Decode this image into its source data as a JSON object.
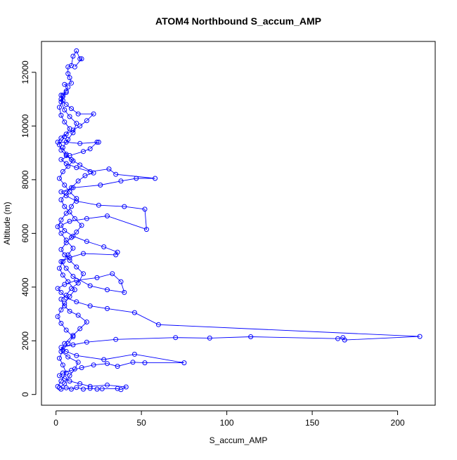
{
  "chart_data": {
    "type": "scatter",
    "title": "ATOM4 Northbound S_accum_AMP",
    "xlabel": "S_accum_AMP",
    "ylabel": "Altitude (m)",
    "xlim": [
      -8.5,
      222
    ],
    "ylim": [
      -400,
      13150
    ],
    "x_ticks": [
      0,
      50,
      100,
      150,
      200
    ],
    "y_ticks": [
      0,
      2000,
      4000,
      6000,
      8000,
      10000,
      12000
    ],
    "grid": false,
    "legend": "none",
    "series_color": "#0000ff",
    "series": [
      {
        "values": [
          [
            3,
            200
          ],
          [
            6,
            250
          ],
          [
            9,
            200
          ],
          [
            12,
            260
          ],
          [
            16,
            200
          ],
          [
            20,
            230
          ],
          [
            24,
            200
          ],
          [
            27,
            210
          ],
          [
            36,
            220
          ],
          [
            38,
            180
          ],
          [
            41,
            280
          ],
          [
            30,
            350
          ],
          [
            20,
            300
          ],
          [
            14,
            400
          ],
          [
            8,
            500
          ],
          [
            5,
            600
          ],
          [
            2,
            700
          ],
          [
            4,
            800
          ],
          [
            9,
            900
          ],
          [
            15,
            1000
          ],
          [
            22,
            1100
          ],
          [
            30,
            1150
          ],
          [
            36,
            1050
          ],
          [
            45,
            1200
          ],
          [
            52,
            1180
          ],
          [
            75,
            1180
          ],
          [
            46,
            1500
          ],
          [
            28,
            1300
          ],
          [
            12,
            1450
          ],
          [
            6,
            1600
          ],
          [
            3,
            1750
          ],
          [
            10,
            1850
          ],
          [
            18,
            1950
          ],
          [
            35,
            2050
          ],
          [
            70,
            2120
          ],
          [
            90,
            2100
          ],
          [
            114,
            2150
          ],
          [
            165,
            2080
          ],
          [
            168,
            2120
          ],
          [
            169,
            2030
          ],
          [
            213,
            2160
          ],
          [
            60,
            2600
          ],
          [
            46,
            3050
          ],
          [
            30,
            3200
          ],
          [
            20,
            3300
          ],
          [
            12,
            3450
          ],
          [
            6,
            3600
          ],
          [
            3,
            3800
          ],
          [
            1,
            3950
          ],
          [
            5,
            4100
          ],
          [
            12,
            4250
          ],
          [
            24,
            4350
          ],
          [
            33,
            4500
          ],
          [
            38,
            4200
          ],
          [
            40,
            3800
          ],
          [
            30,
            3900
          ],
          [
            20,
            4050
          ],
          [
            10,
            4400
          ],
          [
            6,
            4700
          ],
          [
            3,
            4950
          ],
          [
            8,
            5100
          ],
          [
            16,
            5250
          ],
          [
            35,
            5200
          ],
          [
            36,
            5300
          ],
          [
            28,
            5500
          ],
          [
            18,
            5700
          ],
          [
            10,
            5900
          ],
          [
            5,
            6100
          ],
          [
            3,
            6300
          ],
          [
            8,
            6450
          ],
          [
            18,
            6550
          ],
          [
            30,
            6650
          ],
          [
            53,
            6150
          ],
          [
            52,
            6900
          ],
          [
            40,
            7000
          ],
          [
            25,
            7050
          ],
          [
            12,
            7200
          ],
          [
            6,
            7400
          ],
          [
            3,
            7550
          ],
          [
            10,
            7700
          ],
          [
            26,
            7800
          ],
          [
            38,
            7950
          ],
          [
            47,
            8050
          ],
          [
            58,
            8050
          ],
          [
            35,
            8200
          ],
          [
            31,
            8400
          ],
          [
            20,
            8300
          ],
          [
            12,
            8450
          ],
          [
            6,
            8600
          ],
          [
            3,
            8750
          ],
          [
            8,
            8900
          ],
          [
            16,
            9050
          ],
          [
            20,
            9150
          ],
          [
            24,
            9400
          ],
          [
            25,
            9400
          ],
          [
            14,
            9350
          ],
          [
            6,
            9400
          ],
          [
            1,
            9400
          ],
          [
            3,
            9550
          ],
          [
            6,
            9700
          ],
          [
            10,
            9850
          ],
          [
            14,
            10000
          ],
          [
            18,
            10200
          ],
          [
            22,
            10450
          ],
          [
            13,
            10450
          ],
          [
            9,
            10650
          ],
          [
            6,
            10800
          ],
          [
            3,
            11000
          ],
          [
            4,
            11150
          ],
          [
            6,
            11300
          ],
          [
            7,
            11450
          ],
          [
            5,
            11550
          ],
          [
            9,
            11600
          ],
          [
            8,
            11800
          ],
          [
            7,
            11950
          ],
          [
            7,
            12200
          ],
          [
            9,
            12250
          ],
          [
            10,
            12600
          ],
          [
            12,
            12800
          ],
          [
            14,
            12500
          ],
          [
            15,
            12500
          ],
          [
            11,
            12200
          ]
        ]
      },
      {
        "values": [
          [
            2,
            250
          ],
          [
            5,
            400
          ],
          [
            8,
            700
          ],
          [
            11,
            950
          ],
          [
            13,
            1200
          ],
          [
            7,
            1400
          ],
          [
            3,
            1600
          ],
          [
            5,
            1900
          ],
          [
            10,
            2200
          ],
          [
            14,
            2450
          ],
          [
            18,
            2700
          ],
          [
            13,
            2950
          ],
          [
            8,
            3100
          ],
          [
            5,
            3300
          ],
          [
            3,
            3550
          ],
          [
            6,
            3700
          ],
          [
            9,
            3950
          ],
          [
            13,
            4150
          ],
          [
            16,
            4500
          ],
          [
            12,
            4750
          ],
          [
            8,
            5000
          ],
          [
            5,
            5200
          ],
          [
            3,
            5400
          ],
          [
            6,
            5650
          ],
          [
            9,
            5850
          ],
          [
            12,
            6050
          ],
          [
            15,
            6300
          ],
          [
            11,
            6550
          ],
          [
            8,
            6800
          ],
          [
            5,
            7000
          ],
          [
            3,
            7250
          ],
          [
            6,
            7500
          ],
          [
            9,
            7700
          ],
          [
            13,
            7950
          ],
          [
            17,
            8150
          ],
          [
            22,
            8250
          ],
          [
            14,
            8550
          ],
          [
            9,
            8750
          ],
          [
            6,
            8950
          ],
          [
            4,
            9200
          ],
          [
            7,
            9500
          ],
          [
            10,
            9750
          ],
          [
            12,
            10100
          ],
          [
            8,
            10350
          ],
          [
            5,
            10600
          ],
          [
            3,
            10900
          ],
          [
            4,
            11100
          ],
          [
            6,
            11250
          ]
        ]
      },
      {
        "values": [
          [
            1,
            300
          ],
          [
            3,
            500
          ],
          [
            6,
            800
          ],
          [
            4,
            1100
          ],
          [
            2,
            1350
          ],
          [
            4,
            1650
          ],
          [
            7,
            1900
          ],
          [
            10,
            2150
          ],
          [
            6,
            2400
          ],
          [
            3,
            2650
          ],
          [
            1,
            2900
          ],
          [
            3,
            3150
          ],
          [
            5,
            3400
          ],
          [
            8,
            3650
          ],
          [
            11,
            3900
          ],
          [
            7,
            4200
          ],
          [
            4,
            4450
          ],
          [
            2,
            4700
          ],
          [
            4,
            4950
          ],
          [
            7,
            5200
          ],
          [
            10,
            5450
          ],
          [
            6,
            5750
          ],
          [
            3,
            6000
          ],
          [
            1,
            6250
          ],
          [
            3,
            6500
          ],
          [
            6,
            6750
          ],
          [
            9,
            7000
          ],
          [
            12,
            7300
          ],
          [
            8,
            7550
          ],
          [
            5,
            7800
          ],
          [
            2,
            8050
          ],
          [
            4,
            8300
          ],
          [
            7,
            8500
          ],
          [
            10,
            8700
          ],
          [
            6,
            8900
          ],
          [
            3,
            9100
          ],
          [
            2,
            9300
          ],
          [
            5,
            9600
          ],
          [
            8,
            9900
          ],
          [
            5,
            10150
          ],
          [
            3,
            10400
          ],
          [
            2,
            10700
          ],
          [
            4,
            10950
          ],
          [
            3,
            11150
          ]
        ]
      }
    ]
  }
}
